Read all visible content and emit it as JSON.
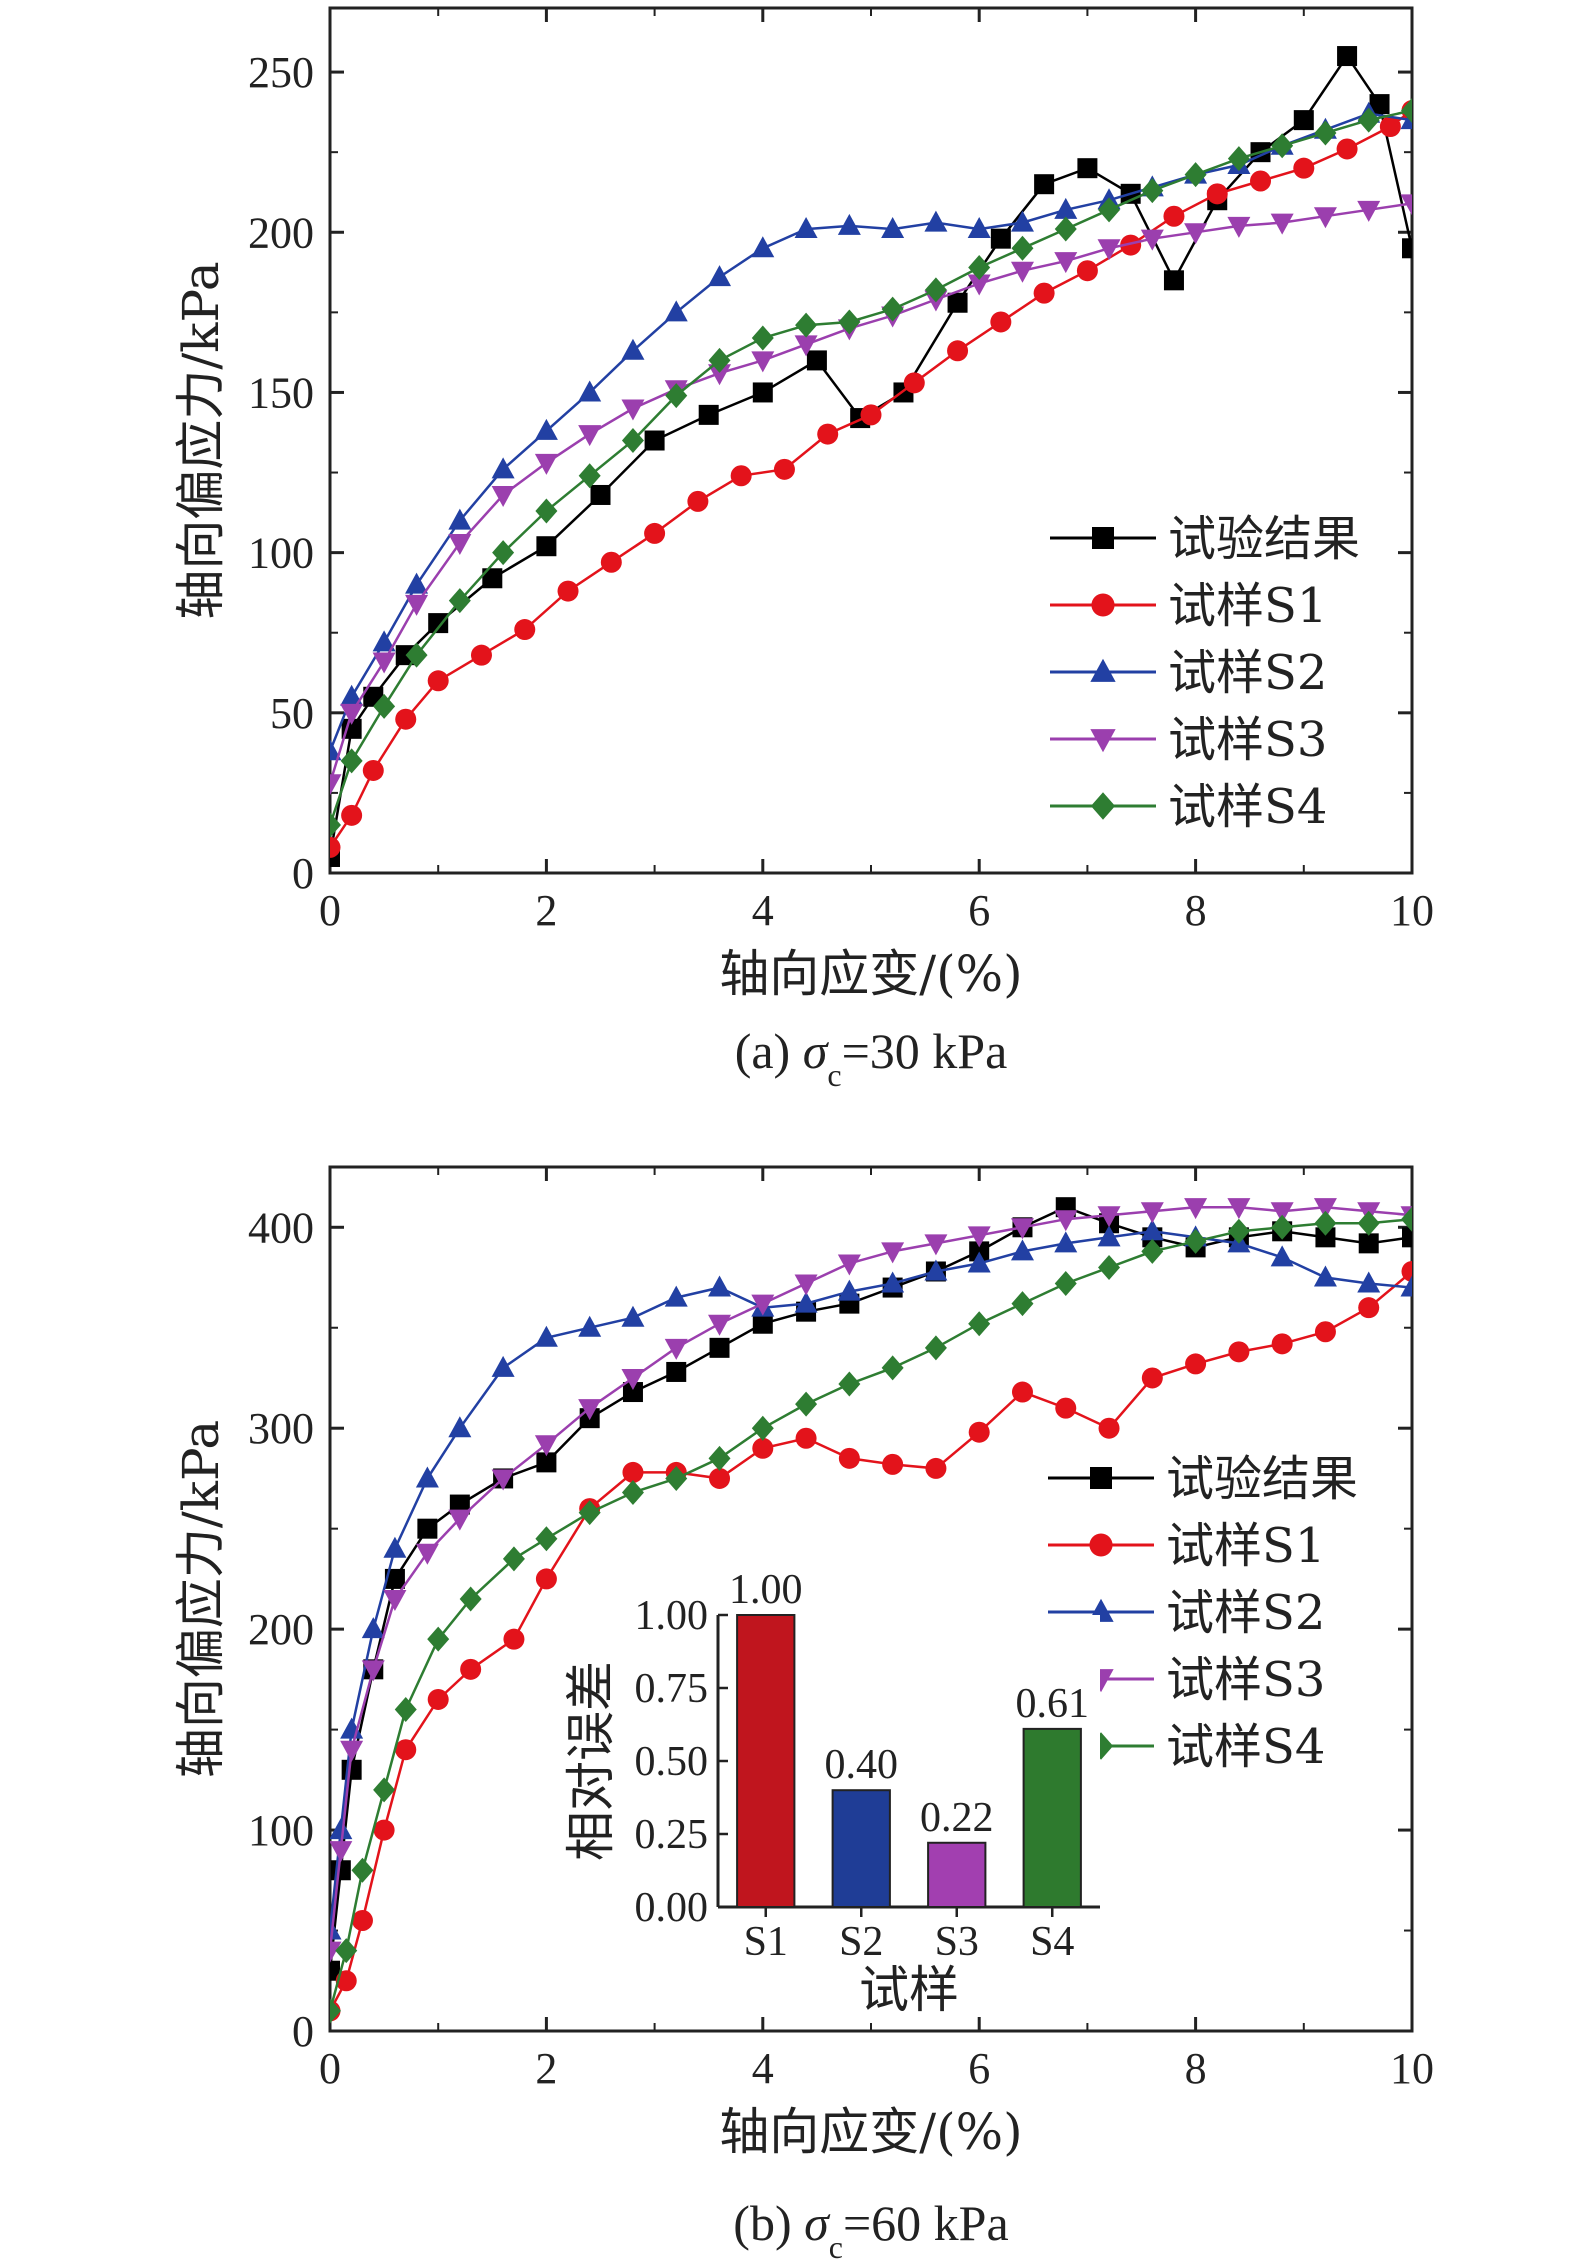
{
  "chart_data": [
    {
      "type": "line",
      "panel": "a",
      "caption_prefix": "(a) ",
      "caption_symbol": "σ",
      "caption_sub": "c",
      "caption_suffix": "=30 kPa",
      "xlabel": "轴向应变/(%)",
      "ylabel": "轴向偏应力/kPa",
      "xlim": [
        0,
        10
      ],
      "ylim": [
        0,
        270
      ],
      "xticks": [
        "0",
        "2",
        "4",
        "6",
        "8",
        "10"
      ],
      "xtick_values": [
        0,
        2,
        4,
        6,
        8,
        10
      ],
      "yticks": [
        "0",
        "50",
        "100",
        "150",
        "200",
        "250"
      ],
      "ytick_values": [
        0,
        50,
        100,
        150,
        200,
        250
      ],
      "legend_position": "center-right",
      "series": [
        {
          "name": "试验结果",
          "color": "#000000",
          "marker": "square",
          "x": [
            0,
            0.2,
            0.4,
            0.7,
            1.0,
            1.5,
            2.0,
            2.5,
            3.0,
            3.5,
            4.0,
            4.5,
            4.9,
            5.3,
            5.8,
            6.2,
            6.6,
            7.0,
            7.4,
            7.8,
            8.2,
            8.6,
            9.0,
            9.4,
            9.7,
            10.0
          ],
          "y": [
            5,
            45,
            55,
            68,
            78,
            92,
            102,
            118,
            135,
            143,
            150,
            160,
            142,
            150,
            178,
            198,
            215,
            220,
            212,
            185,
            210,
            225,
            235,
            255,
            240,
            195
          ]
        },
        {
          "name": "试样S1",
          "color": "#e3131b",
          "marker": "circle",
          "x": [
            0,
            0.2,
            0.4,
            0.7,
            1.0,
            1.4,
            1.8,
            2.2,
            2.6,
            3.0,
            3.4,
            3.8,
            4.2,
            4.6,
            5.0,
            5.4,
            5.8,
            6.2,
            6.6,
            7.0,
            7.4,
            7.8,
            8.2,
            8.6,
            9.0,
            9.4,
            9.8,
            10.0
          ],
          "y": [
            8,
            18,
            32,
            48,
            60,
            68,
            76,
            88,
            97,
            106,
            116,
            124,
            126,
            137,
            143,
            153,
            163,
            172,
            181,
            188,
            196,
            205,
            212,
            216,
            220,
            226,
            233,
            238
          ]
        },
        {
          "name": "试样S2",
          "color": "#2240a3",
          "marker": "triangle-up",
          "x": [
            0,
            0.2,
            0.5,
            0.8,
            1.2,
            1.6,
            2.0,
            2.4,
            2.8,
            3.2,
            3.6,
            4.0,
            4.4,
            4.8,
            5.2,
            5.6,
            6.0,
            6.4,
            6.8,
            7.2,
            7.6,
            8.0,
            8.4,
            8.8,
            9.2,
            9.6,
            10.0
          ],
          "y": [
            38,
            55,
            72,
            90,
            110,
            126,
            138,
            150,
            163,
            175,
            186,
            195,
            201,
            202,
            201,
            203,
            201,
            203,
            207,
            210,
            214,
            218,
            221,
            227,
            232,
            237,
            235
          ]
        },
        {
          "name": "试样S3",
          "color": "#9b3fae",
          "marker": "triangle-down",
          "x": [
            0,
            0.2,
            0.5,
            0.8,
            1.2,
            1.6,
            2.0,
            2.4,
            2.8,
            3.2,
            3.6,
            4.0,
            4.4,
            4.8,
            5.2,
            5.6,
            6.0,
            6.4,
            6.8,
            7.2,
            7.6,
            8.0,
            8.4,
            8.8,
            9.2,
            9.6,
            10.0
          ],
          "y": [
            28,
            50,
            66,
            84,
            103,
            118,
            128,
            137,
            145,
            151,
            156,
            160,
            165,
            170,
            174,
            179,
            184,
            188,
            191,
            195,
            198,
            200,
            202,
            203,
            205,
            207,
            209
          ]
        },
        {
          "name": "试样S4",
          "color": "#2e7d32",
          "marker": "diamond",
          "x": [
            0,
            0.2,
            0.5,
            0.8,
            1.2,
            1.6,
            2.0,
            2.4,
            2.8,
            3.2,
            3.6,
            4.0,
            4.4,
            4.8,
            5.2,
            5.6,
            6.0,
            6.4,
            6.8,
            7.2,
            7.6,
            8.0,
            8.4,
            8.8,
            9.2,
            9.6,
            10.0
          ],
          "y": [
            15,
            35,
            52,
            68,
            85,
            100,
            113,
            124,
            135,
            149,
            160,
            167,
            171,
            172,
            176,
            182,
            189,
            195,
            201,
            207,
            213,
            218,
            223,
            227,
            231,
            235,
            238
          ]
        }
      ]
    },
    {
      "type": "line",
      "panel": "b",
      "caption_prefix": "(b) ",
      "caption_symbol": "σ",
      "caption_sub": "c",
      "caption_suffix": "=60 kPa",
      "xlabel": "轴向应变/(%)",
      "ylabel": "轴向偏应力/kPa",
      "xlim": [
        0,
        10
      ],
      "ylim": [
        0,
        430
      ],
      "xticks": [
        "0",
        "2",
        "4",
        "6",
        "8",
        "10"
      ],
      "xtick_values": [
        0,
        2,
        4,
        6,
        8,
        10
      ],
      "yticks": [
        "0",
        "100",
        "200",
        "300",
        "400"
      ],
      "ytick_values": [
        0,
        100,
        200,
        300,
        400
      ],
      "legend_position": "center-right",
      "series": [
        {
          "name": "试验结果",
          "color": "#000000",
          "marker": "square",
          "x": [
            0,
            0.1,
            0.2,
            0.4,
            0.6,
            0.9,
            1.2,
            1.6,
            2.0,
            2.4,
            2.8,
            3.2,
            3.6,
            4.0,
            4.4,
            4.8,
            5.2,
            5.6,
            6.0,
            6.4,
            6.8,
            7.2,
            7.6,
            8.0,
            8.4,
            8.8,
            9.2,
            9.6,
            10.0
          ],
          "y": [
            30,
            80,
            130,
            180,
            225,
            250,
            262,
            275,
            283,
            305,
            318,
            328,
            340,
            352,
            358,
            362,
            370,
            378,
            388,
            400,
            410,
            402,
            395,
            390,
            395,
            398,
            395,
            392,
            395
          ]
        },
        {
          "name": "试样S1",
          "color": "#e3131b",
          "marker": "circle",
          "x": [
            0,
            0.15,
            0.3,
            0.5,
            0.7,
            1.0,
            1.3,
            1.7,
            2.0,
            2.4,
            2.8,
            3.2,
            3.6,
            4.0,
            4.4,
            4.8,
            5.2,
            5.6,
            6.0,
            6.4,
            6.8,
            7.2,
            7.6,
            8.0,
            8.4,
            8.8,
            9.2,
            9.6,
            10.0
          ],
          "y": [
            10,
            25,
            55,
            100,
            140,
            165,
            180,
            195,
            225,
            260,
            278,
            278,
            275,
            290,
            295,
            285,
            282,
            280,
            298,
            318,
            310,
            300,
            325,
            332,
            338,
            342,
            348,
            360,
            378
          ]
        },
        {
          "name": "试样S2",
          "color": "#2240a3",
          "marker": "triangle-up",
          "x": [
            0,
            0.1,
            0.2,
            0.4,
            0.6,
            0.9,
            1.2,
            1.6,
            2.0,
            2.4,
            2.8,
            3.2,
            3.6,
            4.0,
            4.4,
            4.8,
            5.2,
            5.6,
            6.0,
            6.4,
            6.8,
            7.2,
            7.6,
            8.0,
            8.4,
            8.8,
            9.2,
            9.6,
            10.0
          ],
          "y": [
            50,
            100,
            150,
            200,
            240,
            275,
            300,
            330,
            345,
            350,
            355,
            365,
            370,
            360,
            362,
            368,
            372,
            378,
            382,
            388,
            392,
            395,
            398,
            395,
            392,
            385,
            375,
            372,
            370
          ]
        },
        {
          "name": "试样S3",
          "color": "#9b3fae",
          "marker": "triangle-down",
          "x": [
            0,
            0.1,
            0.2,
            0.4,
            0.6,
            0.9,
            1.2,
            1.6,
            2.0,
            2.4,
            2.8,
            3.2,
            3.6,
            4.0,
            4.4,
            4.8,
            5.2,
            5.6,
            6.0,
            6.4,
            6.8,
            7.2,
            7.6,
            8.0,
            8.4,
            8.8,
            9.2,
            9.6,
            10.0
          ],
          "y": [
            40,
            90,
            140,
            180,
            215,
            238,
            255,
            275,
            292,
            310,
            325,
            340,
            352,
            362,
            372,
            382,
            388,
            392,
            396,
            400,
            404,
            406,
            408,
            410,
            410,
            408,
            410,
            408,
            406
          ]
        },
        {
          "name": "试样S4",
          "color": "#2e7d32",
          "marker": "diamond",
          "x": [
            0,
            0.15,
            0.3,
            0.5,
            0.7,
            1.0,
            1.3,
            1.7,
            2.0,
            2.4,
            2.8,
            3.2,
            3.6,
            4.0,
            4.4,
            4.8,
            5.2,
            5.6,
            6.0,
            6.4,
            6.8,
            7.2,
            7.6,
            8.0,
            8.4,
            8.8,
            9.2,
            9.6,
            10.0
          ],
          "y": [
            10,
            40,
            80,
            120,
            160,
            195,
            215,
            235,
            245,
            258,
            268,
            275,
            285,
            300,
            312,
            322,
            330,
            340,
            352,
            362,
            372,
            380,
            388,
            393,
            398,
            400,
            402,
            402,
            404
          ]
        }
      ],
      "inset": {
        "type": "bar",
        "xlabel": "试样",
        "ylabel": "相对误差",
        "ylim": [
          0,
          1.0
        ],
        "yticks": [
          "0.00",
          "0.25",
          "0.50",
          "0.75",
          "1.00"
        ],
        "ytick_values": [
          0,
          0.25,
          0.5,
          0.75,
          1.0
        ],
        "categories": [
          "S1",
          "S2",
          "S3",
          "S4"
        ],
        "values": [
          1.0,
          0.4,
          0.22,
          0.61
        ],
        "value_labels": [
          "1.00",
          "0.40",
          "0.22",
          "0.61"
        ],
        "colors": [
          "#c0151e",
          "#1f3d96",
          "#a23fb0",
          "#2e7a2e"
        ]
      }
    }
  ]
}
